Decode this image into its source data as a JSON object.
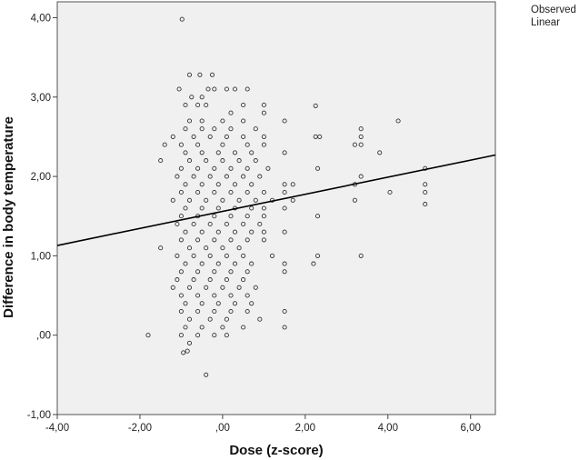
{
  "chart_data": {
    "type": "scatter",
    "xlabel": "Dose (z-score)",
    "ylabel": "Difference in body temperature",
    "xlim": [
      -4,
      6.6
    ],
    "ylim": [
      -1,
      4.2
    ],
    "xticks": [
      -4,
      -2,
      0,
      2,
      4,
      6
    ],
    "yticks": [
      -1,
      0,
      1,
      2,
      3,
      4
    ],
    "xtick_labels": [
      "-4,00",
      "-2,00",
      ",00",
      "2,00",
      "4,00",
      "6,00"
    ],
    "ytick_labels": [
      "-1,00",
      ",00",
      "1,00",
      "2,00",
      "3,00",
      "4,00"
    ],
    "grid": false,
    "background": "#f0f0f0",
    "legend": [
      "Observed",
      "Linear"
    ],
    "legend_position": "top-right outside",
    "series": [
      {
        "name": "Observed",
        "marker": "hollow-circle",
        "color": "#333333",
        "points": [
          [
            -0.98,
            3.98
          ],
          [
            -0.8,
            3.28
          ],
          [
            -0.55,
            3.28
          ],
          [
            -0.25,
            3.28
          ],
          [
            -1.05,
            3.1
          ],
          [
            -0.75,
            3.0
          ],
          [
            -0.5,
            3.0
          ],
          [
            -0.35,
            3.1
          ],
          [
            -0.2,
            3.1
          ],
          [
            0.1,
            3.1
          ],
          [
            0.3,
            3.1
          ],
          [
            0.6,
            3.1
          ],
          [
            -0.9,
            2.9
          ],
          [
            -0.6,
            2.9
          ],
          [
            -0.4,
            2.9
          ],
          [
            0.2,
            2.8
          ],
          [
            0.5,
            2.9
          ],
          [
            1.0,
            2.9
          ],
          [
            2.25,
            2.89
          ],
          [
            -0.8,
            2.7
          ],
          [
            -0.5,
            2.7
          ],
          [
            0.0,
            2.7
          ],
          [
            0.5,
            2.7
          ],
          [
            1.0,
            2.8
          ],
          [
            1.5,
            2.7
          ],
          [
            4.25,
            2.7
          ],
          [
            -0.9,
            2.6
          ],
          [
            -0.5,
            2.6
          ],
          [
            -0.2,
            2.6
          ],
          [
            0.2,
            2.6
          ],
          [
            0.8,
            2.6
          ],
          [
            3.35,
            2.6
          ],
          [
            -1.2,
            2.5
          ],
          [
            -0.7,
            2.5
          ],
          [
            -0.3,
            2.5
          ],
          [
            0.1,
            2.5
          ],
          [
            0.5,
            2.5
          ],
          [
            1.0,
            2.5
          ],
          [
            2.25,
            2.5
          ],
          [
            2.35,
            2.5
          ],
          [
            3.35,
            2.5
          ],
          [
            -1.0,
            2.4
          ],
          [
            -0.6,
            2.4
          ],
          [
            0.0,
            2.4
          ],
          [
            0.6,
            2.4
          ],
          [
            1.0,
            2.4
          ],
          [
            3.2,
            2.4
          ],
          [
            3.35,
            2.4
          ],
          [
            -1.4,
            2.4
          ],
          [
            -0.9,
            2.3
          ],
          [
            -0.5,
            2.3
          ],
          [
            -0.1,
            2.3
          ],
          [
            0.3,
            2.3
          ],
          [
            0.7,
            2.3
          ],
          [
            1.5,
            2.3
          ],
          [
            3.8,
            2.3
          ],
          [
            -1.5,
            2.2
          ],
          [
            -0.8,
            2.2
          ],
          [
            -0.4,
            2.2
          ],
          [
            0.0,
            2.2
          ],
          [
            0.4,
            2.2
          ],
          [
            0.8,
            2.2
          ],
          [
            1.1,
            2.1
          ],
          [
            2.3,
            2.1
          ],
          [
            -1.0,
            2.1
          ],
          [
            -0.6,
            2.1
          ],
          [
            -0.2,
            2.1
          ],
          [
            0.2,
            2.1
          ],
          [
            0.6,
            2.1
          ],
          [
            4.9,
            2.1
          ],
          [
            -1.1,
            2.0
          ],
          [
            -0.7,
            2.0
          ],
          [
            -0.3,
            2.0
          ],
          [
            0.1,
            2.0
          ],
          [
            0.5,
            2.0
          ],
          [
            0.9,
            2.0
          ],
          [
            3.35,
            2.0
          ],
          [
            -0.9,
            1.9
          ],
          [
            -0.5,
            1.9
          ],
          [
            -0.1,
            1.9
          ],
          [
            0.3,
            1.9
          ],
          [
            0.7,
            1.9
          ],
          [
            1.5,
            1.9
          ],
          [
            1.7,
            1.9
          ],
          [
            3.2,
            1.9
          ],
          [
            4.9,
            1.9
          ],
          [
            -1.0,
            1.8
          ],
          [
            -0.6,
            1.8
          ],
          [
            -0.2,
            1.8
          ],
          [
            0.2,
            1.8
          ],
          [
            0.6,
            1.8
          ],
          [
            1.0,
            1.8
          ],
          [
            1.5,
            1.8
          ],
          [
            4.05,
            1.8
          ],
          [
            4.9,
            1.8
          ],
          [
            -1.2,
            1.7
          ],
          [
            -0.8,
            1.7
          ],
          [
            -0.4,
            1.7
          ],
          [
            0.0,
            1.7
          ],
          [
            0.4,
            1.7
          ],
          [
            0.8,
            1.7
          ],
          [
            1.2,
            1.7
          ],
          [
            1.7,
            1.7
          ],
          [
            3.2,
            1.7
          ],
          [
            -0.9,
            1.6
          ],
          [
            -0.5,
            1.6
          ],
          [
            -0.1,
            1.6
          ],
          [
            0.3,
            1.6
          ],
          [
            0.7,
            1.6
          ],
          [
            1.0,
            1.6
          ],
          [
            1.5,
            1.6
          ],
          [
            4.9,
            1.65
          ],
          [
            -1.0,
            1.5
          ],
          [
            -0.6,
            1.5
          ],
          [
            -0.2,
            1.5
          ],
          [
            0.2,
            1.5
          ],
          [
            0.6,
            1.5
          ],
          [
            1.0,
            1.5
          ],
          [
            2.3,
            1.5
          ],
          [
            -1.1,
            1.4
          ],
          [
            -0.7,
            1.4
          ],
          [
            -0.3,
            1.4
          ],
          [
            0.1,
            1.4
          ],
          [
            0.5,
            1.4
          ],
          [
            0.9,
            1.4
          ],
          [
            -0.9,
            1.3
          ],
          [
            -0.5,
            1.3
          ],
          [
            -0.1,
            1.3
          ],
          [
            0.3,
            1.3
          ],
          [
            0.7,
            1.3
          ],
          [
            1.0,
            1.3
          ],
          [
            1.5,
            1.3
          ],
          [
            -1.0,
            1.2
          ],
          [
            -0.6,
            1.2
          ],
          [
            -0.2,
            1.2
          ],
          [
            0.2,
            1.2
          ],
          [
            0.6,
            1.2
          ],
          [
            1.0,
            1.2
          ],
          [
            -0.8,
            1.1
          ],
          [
            -0.4,
            1.1
          ],
          [
            0.0,
            1.1
          ],
          [
            0.4,
            1.1
          ],
          [
            -1.5,
            1.1
          ],
          [
            -1.1,
            1.0
          ],
          [
            -0.7,
            1.0
          ],
          [
            -0.3,
            1.0
          ],
          [
            0.1,
            1.0
          ],
          [
            0.5,
            1.0
          ],
          [
            1.2,
            1.0
          ],
          [
            2.3,
            1.0
          ],
          [
            3.35,
            1.0
          ],
          [
            -0.9,
            0.9
          ],
          [
            -0.5,
            0.9
          ],
          [
            -0.1,
            0.9
          ],
          [
            0.3,
            0.9
          ],
          [
            0.7,
            0.9
          ],
          [
            1.5,
            0.9
          ],
          [
            2.2,
            0.9
          ],
          [
            -1.0,
            0.8
          ],
          [
            -0.6,
            0.8
          ],
          [
            -0.2,
            0.8
          ],
          [
            0.2,
            0.8
          ],
          [
            0.6,
            0.8
          ],
          [
            1.5,
            0.8
          ],
          [
            -1.1,
            0.7
          ],
          [
            -0.7,
            0.7
          ],
          [
            -0.3,
            0.7
          ],
          [
            0.1,
            0.7
          ],
          [
            0.5,
            0.7
          ],
          [
            -1.2,
            0.6
          ],
          [
            -0.8,
            0.6
          ],
          [
            -0.4,
            0.6
          ],
          [
            0.0,
            0.6
          ],
          [
            0.4,
            0.6
          ],
          [
            0.8,
            0.6
          ],
          [
            -1.0,
            0.5
          ],
          [
            -0.6,
            0.5
          ],
          [
            -0.2,
            0.5
          ],
          [
            0.2,
            0.5
          ],
          [
            0.6,
            0.5
          ],
          [
            -0.9,
            0.4
          ],
          [
            -0.5,
            0.4
          ],
          [
            -0.1,
            0.4
          ],
          [
            0.3,
            0.4
          ],
          [
            0.7,
            0.4
          ],
          [
            -1.0,
            0.3
          ],
          [
            -0.6,
            0.3
          ],
          [
            -0.2,
            0.3
          ],
          [
            0.2,
            0.3
          ],
          [
            0.6,
            0.3
          ],
          [
            1.5,
            0.3
          ],
          [
            -0.8,
            0.2
          ],
          [
            -0.3,
            0.2
          ],
          [
            0.1,
            0.2
          ],
          [
            0.9,
            0.2
          ],
          [
            -0.9,
            0.1
          ],
          [
            -0.5,
            0.1
          ],
          [
            0.0,
            0.1
          ],
          [
            0.5,
            0.1
          ],
          [
            1.5,
            0.1
          ],
          [
            -1.8,
            0.0
          ],
          [
            -1.0,
            0.0
          ],
          [
            -0.6,
            0.0
          ],
          [
            -0.2,
            0.0
          ],
          [
            0.1,
            0.0
          ],
          [
            -0.8,
            -0.1
          ],
          [
            -0.85,
            -0.2
          ],
          [
            -0.95,
            -0.22
          ],
          [
            -0.4,
            -0.5
          ]
        ]
      },
      {
        "name": "Linear",
        "type": "line",
        "color": "#000000",
        "points": [
          [
            -4.0,
            1.13
          ],
          [
            6.6,
            2.27
          ]
        ]
      }
    ]
  }
}
